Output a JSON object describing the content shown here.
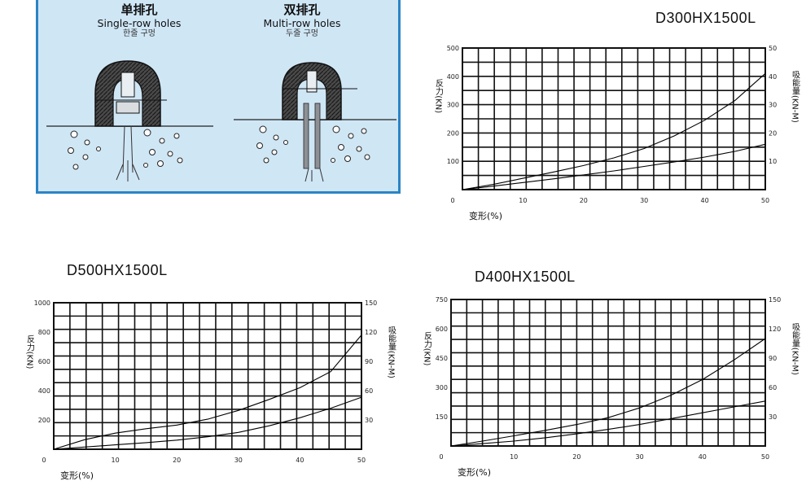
{
  "diagram": {
    "single": {
      "cn": "单排孔",
      "en": "Single-row holes",
      "kr": "한줄 구멍"
    },
    "multi": {
      "cn": "双排孔",
      "en": "Multi-row holes",
      "kr": "두줄 구멍"
    }
  },
  "chart_data": [
    {
      "id": "d300",
      "type": "line",
      "title": "D300HX1500L",
      "xlabel": "变形(%)",
      "ylabel": "反力(KN)",
      "y2label": "吸能量(KN-M)",
      "x_ticks": [
        0,
        10,
        20,
        30,
        40,
        50
      ],
      "y_ticks": [
        100,
        200,
        300,
        400,
        500
      ],
      "y2_ticks": [
        10,
        20,
        30,
        40,
        50
      ],
      "xlim": [
        0,
        50
      ],
      "ylim": [
        0,
        500
      ],
      "y2lim": [
        0,
        50
      ],
      "grid": true,
      "series": [
        {
          "axis": "left",
          "x": [
            0,
            5,
            10,
            15,
            20,
            25,
            30,
            35,
            40,
            45,
            50
          ],
          "y": [
            0,
            18,
            40,
            62,
            85,
            112,
            145,
            190,
            245,
            315,
            410
          ]
        },
        {
          "axis": "left",
          "x": [
            0,
            5,
            10,
            15,
            20,
            25,
            30,
            35,
            40,
            45,
            50
          ],
          "y": [
            0,
            12,
            25,
            38,
            52,
            66,
            82,
            98,
            115,
            135,
            160
          ]
        }
      ]
    },
    {
      "id": "d500",
      "type": "line",
      "title": "D500HX1500L",
      "xlabel": "变形(%)",
      "ylabel": "反力(KN)",
      "y2label": "吸能量(KN-M)",
      "x_ticks": [
        0,
        10,
        20,
        30,
        40,
        50
      ],
      "y_ticks": [
        200,
        400,
        600,
        800,
        1000
      ],
      "y2_ticks": [
        30,
        60,
        90,
        120,
        150
      ],
      "xlim": [
        0,
        50
      ],
      "ylim": [
        0,
        1000
      ],
      "y2lim": [
        0,
        150
      ],
      "grid": true,
      "series": [
        {
          "axis": "left",
          "x": [
            0,
            5,
            10,
            15,
            20,
            25,
            30,
            35,
            40,
            45,
            50
          ],
          "y": [
            0,
            65,
            110,
            140,
            165,
            205,
            265,
            340,
            420,
            530,
            780
          ]
        },
        {
          "axis": "left",
          "x": [
            0,
            5,
            10,
            15,
            20,
            25,
            30,
            35,
            40,
            45,
            50
          ],
          "y": [
            0,
            15,
            30,
            45,
            62,
            85,
            115,
            160,
            215,
            280,
            355
          ]
        }
      ]
    },
    {
      "id": "d400",
      "type": "line",
      "title": "D400HX1500L",
      "xlabel": "变形(%)",
      "ylabel": "反力(KN)",
      "y2label": "吸能量(KN-M)",
      "x_ticks": [
        0,
        10,
        20,
        30,
        40,
        50
      ],
      "y_ticks": [
        150,
        300,
        450,
        600,
        750
      ],
      "y2_ticks": [
        30,
        60,
        90,
        120,
        150
      ],
      "xlim": [
        0,
        50
      ],
      "ylim": [
        0,
        750
      ],
      "y2lim": [
        0,
        150
      ],
      "grid": true,
      "series": [
        {
          "axis": "left",
          "x": [
            0,
            5,
            10,
            15,
            20,
            25,
            30,
            35,
            40,
            45,
            50
          ],
          "y": [
            0,
            25,
            52,
            80,
            110,
            145,
            195,
            260,
            340,
            440,
            550
          ]
        },
        {
          "axis": "left",
          "x": [
            0,
            5,
            10,
            15,
            20,
            25,
            30,
            35,
            40,
            45,
            50
          ],
          "y": [
            0,
            12,
            25,
            42,
            62,
            85,
            110,
            140,
            170,
            200,
            230
          ]
        }
      ]
    }
  ]
}
